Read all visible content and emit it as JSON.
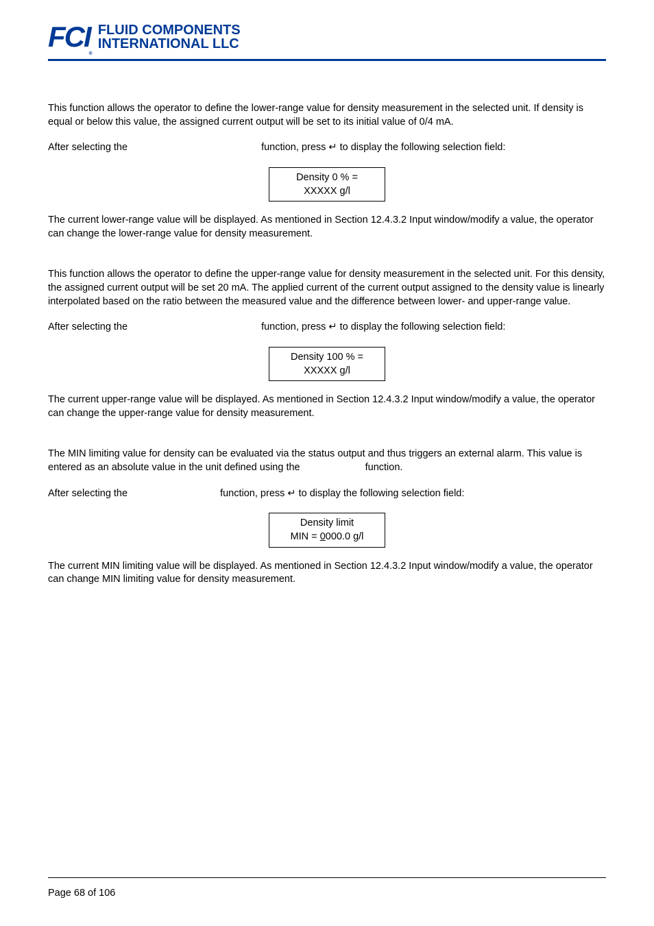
{
  "logo": {
    "fci": "FCI",
    "reg": "®",
    "line1": "FLUID COMPONENTS",
    "line2": "INTERNATIONAL LLC"
  },
  "section1": {
    "p1": "This function allows the operator to define the lower-range value for density measurement in the selected unit. If density is equal or below this value, the assigned current output will be set to its initial value of 0/4 mA.",
    "p2a": "After selecting the",
    "p2b": "function, press ↵ to display the following selection field:",
    "display": {
      "line1": "Density 0 % =",
      "line2": "XXXXX g/l"
    },
    "p3": "The current lower-range value will be displayed. As mentioned in Section 12.4.3.2 Input window/modify a value, the operator can change the lower-range value for density measurement."
  },
  "section2": {
    "p1": "This function allows the operator to define the upper-range value for density measurement in the selected unit. For this density, the assigned current output will be set 20 mA. The applied current of the current output assigned to the density value is linearly interpolated based on the ratio between the measured value and the difference between lower- and upper-range value.",
    "p2a": "After selecting the",
    "p2b": "function, press ↵ to display the following selection field:",
    "display": {
      "line1": "Density 100 % =",
      "line2": "XXXXX g/l"
    },
    "p3": "The current upper-range value will be displayed. As mentioned in Section 12.4.3.2 Input window/modify a value, the operator can change the upper-range value for density measurement."
  },
  "section3": {
    "p1a": "The MIN limiting value for density can be evaluated via the status output and thus triggers an external alarm. This value is entered as an absolute value in the unit defined using the",
    "p1b": "function.",
    "p2a": "After selecting the",
    "p2b": "function, press ↵ to display the following selection field:",
    "display": {
      "line1": "Density limit",
      "line2a": "MIN = ",
      "line2b": "0",
      "line2c": "000.0 g/l"
    },
    "p3": "The current MIN limiting value will be displayed. As mentioned in Section 12.4.3.2 Input window/modify a value, the operator can change MIN limiting value for density measurement."
  },
  "footer": "Page 68 of 106",
  "layout": {
    "gap_after_function1": 195,
    "gap_after_function2": 195,
    "gap_after_function3": 135,
    "gap_using_the": 95
  }
}
